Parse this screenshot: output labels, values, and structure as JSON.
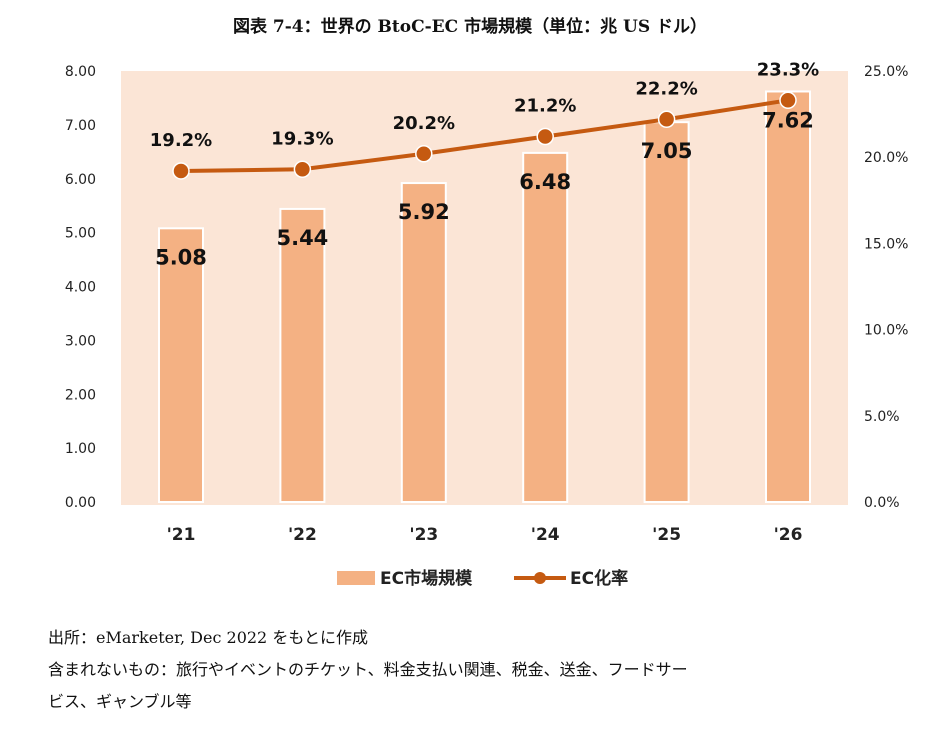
{
  "chart_data": {
    "type": "bar+line",
    "title": "図表 7-4：世界の BtoC-EC 市場規模（単位：兆 US ドル）",
    "categories": [
      "'21",
      "'22",
      "'23",
      "'24",
      "'25",
      "'26"
    ],
    "series": [
      {
        "name": "EC市場規模",
        "type": "bar",
        "axis": "left",
        "values": [
          5.08,
          5.44,
          5.92,
          6.48,
          7.05,
          7.62
        ],
        "labels": [
          "5.08",
          "5.44",
          "5.92",
          "6.48",
          "7.05",
          "7.62"
        ],
        "color": "#F4B183"
      },
      {
        "name": "EC化率",
        "type": "line",
        "axis": "right",
        "values": [
          19.2,
          19.3,
          20.2,
          21.2,
          22.2,
          23.3
        ],
        "labels": [
          "19.2%",
          "19.3%",
          "20.2%",
          "21.2%",
          "22.2%",
          "23.3%"
        ],
        "color": "#C55A11"
      }
    ],
    "left_axis": {
      "range": [
        0,
        8
      ],
      "ticks": [
        "0.00",
        "1.00",
        "2.00",
        "3.00",
        "4.00",
        "5.00",
        "6.00",
        "7.00",
        "8.00"
      ]
    },
    "right_axis": {
      "range": [
        0,
        25
      ],
      "ticks": [
        "0.0%",
        "5.0%",
        "10.0%",
        "15.0%",
        "20.0%",
        "25.0%"
      ]
    },
    "grid": false,
    "legend": "bottom",
    "plot_background": "#FBE5D6"
  },
  "notes": {
    "source": "出所：eMarketer, Dec 2022 をもとに作成",
    "exclusions_1": "含まれないもの：旅行やイベントのチケット、料金支払い関連、税金、送金、フードサー",
    "exclusions_2": "ビス、ギャンブル等"
  }
}
